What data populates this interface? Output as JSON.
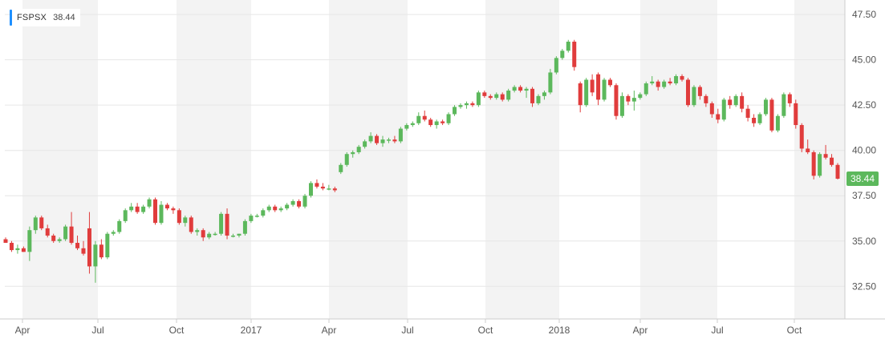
{
  "legend": {
    "symbol": "FSPSX",
    "value": "38.44"
  },
  "colors": {
    "up": "#5cb85c",
    "down": "#e03c3c",
    "accent": "#1e90ff",
    "price_tag": "#5cb85c",
    "band": "#f3f3f3"
  },
  "chart_data": {
    "type": "candlestick",
    "title": "",
    "xlabel": "",
    "ylabel": "",
    "ylim": [
      30.7,
      48.3
    ],
    "y_ticks": [
      "32.50",
      "35.00",
      "37.50",
      "40.00",
      "42.50",
      "45.00",
      "47.50"
    ],
    "x_ticks": [
      "Apr",
      "Jul",
      "Oct",
      "2017",
      "Apr",
      "Jul",
      "Oct",
      "2018",
      "Apr",
      "Jul",
      "Oct"
    ],
    "last_price": "38.44",
    "series": [
      {
        "candles": [
          [
            35.1,
            35.2,
            34.9,
            34.9
          ],
          [
            34.9,
            35.0,
            34.4,
            34.5
          ],
          [
            34.5,
            34.8,
            34.3,
            34.6
          ],
          [
            34.6,
            34.7,
            34.4,
            34.4
          ],
          [
            34.4,
            35.8,
            33.9,
            35.6
          ],
          [
            35.6,
            36.4,
            35.4,
            36.3
          ],
          [
            36.3,
            36.4,
            35.6,
            35.7
          ],
          [
            35.7,
            35.9,
            35.2,
            35.3
          ],
          [
            35.3,
            35.4,
            34.9,
            35.0
          ],
          [
            35.0,
            35.2,
            34.9,
            35.1
          ],
          [
            35.1,
            35.9,
            35.0,
            35.8
          ],
          [
            35.8,
            36.6,
            34.8,
            34.9
          ],
          [
            34.9,
            35.3,
            34.5,
            34.6
          ],
          [
            34.6,
            35.0,
            34.2,
            34.3
          ],
          [
            35.7,
            36.6,
            33.2,
            33.6
          ],
          [
            33.6,
            35.0,
            32.7,
            34.8
          ],
          [
            34.8,
            35.1,
            34.0,
            34.1
          ],
          [
            34.1,
            35.5,
            34.0,
            35.4
          ],
          [
            35.4,
            35.6,
            35.3,
            35.5
          ],
          [
            35.5,
            36.2,
            35.4,
            36.1
          ],
          [
            36.1,
            36.8,
            36.0,
            36.7
          ],
          [
            36.7,
            37.1,
            36.6,
            36.9
          ],
          [
            36.9,
            37.1,
            36.5,
            36.6
          ],
          [
            36.6,
            37.0,
            36.5,
            36.9
          ],
          [
            36.9,
            37.4,
            36.8,
            37.3
          ],
          [
            37.3,
            37.4,
            35.9,
            36.0
          ],
          [
            36.0,
            37.2,
            35.9,
            37.0
          ],
          [
            37.0,
            37.1,
            36.7,
            36.8
          ],
          [
            36.8,
            36.9,
            36.5,
            36.7
          ],
          [
            36.7,
            36.8,
            35.9,
            36.0
          ],
          [
            36.0,
            36.4,
            35.8,
            36.3
          ],
          [
            36.3,
            36.4,
            35.4,
            35.5
          ],
          [
            35.5,
            35.7,
            35.3,
            35.6
          ],
          [
            35.6,
            35.7,
            35.0,
            35.2
          ],
          [
            35.2,
            35.5,
            35.1,
            35.4
          ],
          [
            35.4,
            35.5,
            35.3,
            35.4
          ],
          [
            35.4,
            36.6,
            35.3,
            36.5
          ],
          [
            36.5,
            36.8,
            35.1,
            35.3
          ],
          [
            35.3,
            35.4,
            35.2,
            35.3
          ],
          [
            35.3,
            35.4,
            35.2,
            35.4
          ],
          [
            35.4,
            36.2,
            35.3,
            36.1
          ],
          [
            36.1,
            36.5,
            36.0,
            36.4
          ],
          [
            36.4,
            36.5,
            36.3,
            36.4
          ],
          [
            36.4,
            36.8,
            36.3,
            36.7
          ],
          [
            36.7,
            37.0,
            36.6,
            36.9
          ],
          [
            36.9,
            37.0,
            36.6,
            36.7
          ],
          [
            36.7,
            36.9,
            36.6,
            36.8
          ],
          [
            36.8,
            37.1,
            36.7,
            37.0
          ],
          [
            37.0,
            37.3,
            36.9,
            37.2
          ],
          [
            37.2,
            37.3,
            36.8,
            36.9
          ],
          [
            36.9,
            37.6,
            36.8,
            37.5
          ],
          [
            37.5,
            38.3,
            37.4,
            38.2
          ],
          [
            38.2,
            38.4,
            37.9,
            38.0
          ],
          [
            38.0,
            38.2,
            37.8,
            37.9
          ],
          [
            37.9,
            38.1,
            37.8,
            37.9
          ],
          [
            37.9,
            38.0,
            37.7,
            37.8
          ],
          [
            38.8,
            39.3,
            38.7,
            39.2
          ],
          [
            39.2,
            39.9,
            39.1,
            39.8
          ],
          [
            39.8,
            40.0,
            39.6,
            39.9
          ],
          [
            39.9,
            40.3,
            39.8,
            40.2
          ],
          [
            40.2,
            40.6,
            40.1,
            40.5
          ],
          [
            40.5,
            41.0,
            40.4,
            40.8
          ],
          [
            40.8,
            40.9,
            40.3,
            40.4
          ],
          [
            40.4,
            40.8,
            40.2,
            40.6
          ],
          [
            40.6,
            40.7,
            40.4,
            40.6
          ],
          [
            40.6,
            40.8,
            40.4,
            40.5
          ],
          [
            40.5,
            41.3,
            40.4,
            41.2
          ],
          [
            41.2,
            41.5,
            41.1,
            41.4
          ],
          [
            41.4,
            41.6,
            41.3,
            41.5
          ],
          [
            41.5,
            42.1,
            41.4,
            41.9
          ],
          [
            41.9,
            42.2,
            41.6,
            41.7
          ],
          [
            41.7,
            41.8,
            41.3,
            41.4
          ],
          [
            41.4,
            41.7,
            41.2,
            41.6
          ],
          [
            41.6,
            41.7,
            41.4,
            41.5
          ],
          [
            41.5,
            42.1,
            41.4,
            42.0
          ],
          [
            42.0,
            42.5,
            41.9,
            42.4
          ],
          [
            42.4,
            42.6,
            42.3,
            42.5
          ],
          [
            42.5,
            42.7,
            42.3,
            42.6
          ],
          [
            42.6,
            42.7,
            42.4,
            42.5
          ],
          [
            42.5,
            43.3,
            42.4,
            43.2
          ],
          [
            43.2,
            43.3,
            42.9,
            43.0
          ],
          [
            43.0,
            43.1,
            42.8,
            42.9
          ],
          [
            42.9,
            43.2,
            42.8,
            43.1
          ],
          [
            43.1,
            43.2,
            42.7,
            42.8
          ],
          [
            42.8,
            43.4,
            42.7,
            43.3
          ],
          [
            43.3,
            43.6,
            43.2,
            43.5
          ],
          [
            43.5,
            43.6,
            43.2,
            43.3
          ],
          [
            43.3,
            43.5,
            42.9,
            43.4
          ],
          [
            43.4,
            43.5,
            42.4,
            42.6
          ],
          [
            42.6,
            43.1,
            42.5,
            43.0
          ],
          [
            43.0,
            43.3,
            42.8,
            43.2
          ],
          [
            43.2,
            44.5,
            43.1,
            44.3
          ],
          [
            44.3,
            45.2,
            44.2,
            45.1
          ],
          [
            45.1,
            45.6,
            45.0,
            45.5
          ],
          [
            45.5,
            46.1,
            45.4,
            46.0
          ],
          [
            46.0,
            46.1,
            44.4,
            44.6
          ],
          [
            43.7,
            43.8,
            42.1,
            42.5
          ],
          [
            42.5,
            44.0,
            42.4,
            43.9
          ],
          [
            43.9,
            44.2,
            43.0,
            43.2
          ],
          [
            44.2,
            44.3,
            42.5,
            42.8
          ],
          [
            42.8,
            44.0,
            42.7,
            43.9
          ],
          [
            43.9,
            44.0,
            43.5,
            43.6
          ],
          [
            43.6,
            43.7,
            41.7,
            41.9
          ],
          [
            41.9,
            43.2,
            41.8,
            43.0
          ],
          [
            43.0,
            43.1,
            42.5,
            42.7
          ],
          [
            42.7,
            43.3,
            42.2,
            42.9
          ],
          [
            42.9,
            43.2,
            42.8,
            43.1
          ],
          [
            43.1,
            43.8,
            43.0,
            43.7
          ],
          [
            43.7,
            44.1,
            43.6,
            43.8
          ],
          [
            43.8,
            43.9,
            43.3,
            43.5
          ],
          [
            43.5,
            43.9,
            43.4,
            43.8
          ],
          [
            43.8,
            44.0,
            43.6,
            43.7
          ],
          [
            43.7,
            44.2,
            43.6,
            44.1
          ],
          [
            44.1,
            44.2,
            43.8,
            43.9
          ],
          [
            43.9,
            44.0,
            42.4,
            42.5
          ],
          [
            42.5,
            43.6,
            42.4,
            43.5
          ],
          [
            43.5,
            43.6,
            42.8,
            43.0
          ],
          [
            43.0,
            43.1,
            42.4,
            42.6
          ],
          [
            42.6,
            42.7,
            41.8,
            42.0
          ],
          [
            42.0,
            42.3,
            41.5,
            41.7
          ],
          [
            41.7,
            42.9,
            41.6,
            42.8
          ],
          [
            42.8,
            43.0,
            42.3,
            42.5
          ],
          [
            42.5,
            43.1,
            42.4,
            43.0
          ],
          [
            43.0,
            43.2,
            42.1,
            42.3
          ],
          [
            42.3,
            42.5,
            41.6,
            41.8
          ],
          [
            41.8,
            42.0,
            41.3,
            41.5
          ],
          [
            41.5,
            42.1,
            41.4,
            42.0
          ],
          [
            42.0,
            42.9,
            41.9,
            42.8
          ],
          [
            42.8,
            42.9,
            41.0,
            41.1
          ],
          [
            41.1,
            42.0,
            41.0,
            41.9
          ],
          [
            41.9,
            43.2,
            41.8,
            43.1
          ],
          [
            43.1,
            43.2,
            42.4,
            42.6
          ],
          [
            42.6,
            42.8,
            41.2,
            41.4
          ],
          [
            41.4,
            41.5,
            39.9,
            40.1
          ],
          [
            40.1,
            40.6,
            39.8,
            39.9
          ],
          [
            39.9,
            40.0,
            38.4,
            38.6
          ],
          [
            38.6,
            39.9,
            38.5,
            39.8
          ],
          [
            39.8,
            40.3,
            39.5,
            39.6
          ],
          [
            39.6,
            39.8,
            39.1,
            39.2
          ],
          [
            39.2,
            39.3,
            38.4,
            38.44
          ]
        ]
      }
    ]
  }
}
